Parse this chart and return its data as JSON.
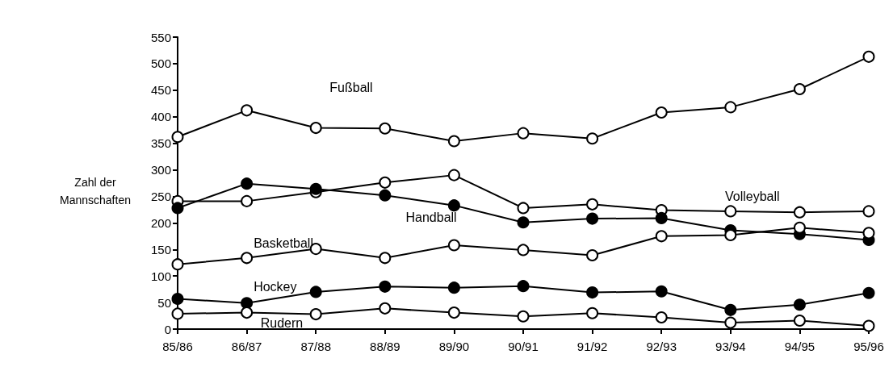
{
  "chart_data": {
    "type": "line",
    "ylabel": "Zahl der\nMannschaften",
    "categories": [
      "85/86",
      "86/87",
      "87/88",
      "88/89",
      "89/90",
      "90/91",
      "91/92",
      "92/93",
      "93/94",
      "94/95",
      "95/96"
    ],
    "series": [
      {
        "name": "Fußball",
        "color": "#ffffff",
        "values": [
          362,
          412,
          379,
          378,
          354,
          369,
          359,
          408,
          418,
          452,
          513
        ]
      },
      {
        "name": "Volleyball",
        "color": "#ffffff",
        "values": [
          241,
          241,
          258,
          276,
          290,
          228,
          235,
          224,
          222,
          220,
          222
        ]
      },
      {
        "name": "Handball",
        "color": "#000000",
        "values": [
          228,
          274,
          264,
          252,
          233,
          201,
          208,
          209,
          186,
          179,
          168
        ]
      },
      {
        "name": "Basketball",
        "color": "#ffffff",
        "values": [
          122,
          134,
          151,
          134,
          158,
          149,
          139,
          175,
          177,
          191,
          181
        ]
      },
      {
        "name": "Hockey",
        "color": "#000000",
        "values": [
          57,
          49,
          70,
          80,
          78,
          81,
          69,
          71,
          36,
          46,
          68
        ]
      },
      {
        "name": "Rudern",
        "color": "#ffffff",
        "values": [
          29,
          31,
          28,
          39,
          31,
          24,
          30,
          22,
          12,
          16,
          6
        ]
      }
    ],
    "ylim": [
      0,
      550
    ],
    "yticks": [
      0,
      50,
      100,
      150,
      200,
      250,
      300,
      350,
      400,
      450,
      500,
      550
    ],
    "grid": false,
    "legend": false,
    "marker": "circle",
    "line_style": "solid"
  }
}
